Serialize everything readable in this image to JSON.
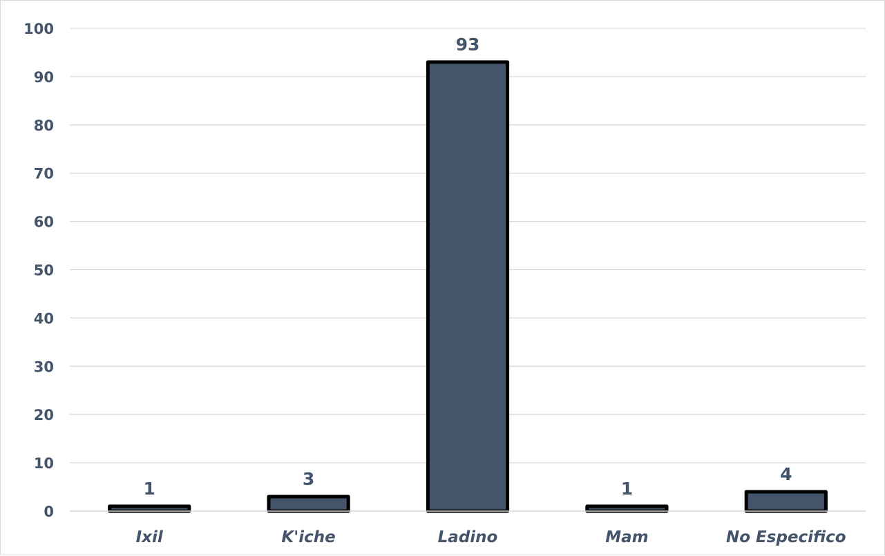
{
  "chart_data": {
    "type": "bar",
    "categories": [
      "Ixil",
      "K'iche",
      "Ladino",
      "Mam",
      "No Especifico"
    ],
    "values": [
      1,
      3,
      93,
      1,
      4
    ],
    "data_labels": [
      "1",
      "3",
      "93",
      "1",
      "4"
    ],
    "title": "",
    "xlabel": "",
    "ylabel": "",
    "ylim": [
      0,
      100
    ],
    "yticks": [
      0,
      10,
      20,
      30,
      40,
      50,
      60,
      70,
      80,
      90,
      100
    ],
    "grid": true,
    "legend": "none",
    "colors": {
      "bar_fill": "#44546a",
      "bar_outline": "#000000",
      "text": "#44546a",
      "grid": "#d9d9d9"
    }
  }
}
